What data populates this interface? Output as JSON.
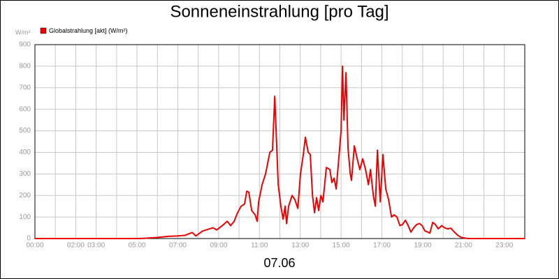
{
  "chart_data": {
    "type": "line",
    "title": "Sonneneinstrahlung [pro Tag]",
    "y_label": "W/m²",
    "x_label": "07.06",
    "series": [
      {
        "name": "Globalstrahlung [akt] (W/m²)",
        "color": "#ee0000",
        "x": [
          0,
          5.14,
          5.99,
          6.51,
          7.02,
          7.36,
          7.71,
          7.88,
          8.22,
          8.56,
          8.73,
          8.9,
          9.18,
          9.42,
          9.59,
          9.76,
          9.93,
          10.1,
          10.27,
          10.38,
          10.48,
          10.62,
          10.79,
          10.89,
          10.96,
          11.13,
          11.3,
          11.51,
          11.64,
          11.75,
          11.92,
          12.05,
          12.16,
          12.26,
          12.33,
          12.43,
          12.6,
          12.74,
          12.88,
          13.01,
          13.15,
          13.25,
          13.39,
          13.49,
          13.6,
          13.7,
          13.8,
          13.9,
          14.01,
          14.11,
          14.28,
          14.45,
          14.55,
          14.66,
          14.76,
          14.86,
          15.0,
          15.07,
          15.14,
          15.24,
          15.34,
          15.45,
          15.51,
          15.65,
          15.79,
          15.92,
          16.06,
          16.2,
          16.34,
          16.44,
          16.58,
          16.68,
          16.78,
          16.92,
          17.05,
          17.19,
          17.33,
          17.47,
          17.6,
          17.74,
          17.88,
          18.01,
          18.15,
          18.29,
          18.42,
          18.56,
          18.7,
          18.84,
          18.97,
          19.11,
          19.25,
          19.35,
          19.49,
          19.62,
          19.76,
          19.93,
          20.07,
          20.21,
          20.38,
          20.55,
          20.72,
          20.89,
          21.23,
          24
        ],
        "values": [
          0,
          0,
          5,
          10,
          12,
          15,
          28,
          12,
          35,
          45,
          50,
          40,
          60,
          80,
          60,
          80,
          120,
          150,
          160,
          220,
          215,
          130,
          110,
          80,
          170,
          250,
          300,
          400,
          410,
          660,
          250,
          150,
          90,
          150,
          70,
          150,
          200,
          180,
          140,
          300,
          390,
          470,
          400,
          390,
          200,
          120,
          190,
          130,
          200,
          170,
          330,
          320,
          260,
          280,
          230,
          340,
          500,
          800,
          550,
          770,
          420,
          300,
          270,
          430,
          370,
          320,
          370,
          320,
          250,
          320,
          200,
          150,
          410,
          170,
          390,
          230,
          180,
          100,
          110,
          100,
          60,
          65,
          85,
          60,
          30,
          50,
          65,
          70,
          60,
          35,
          30,
          25,
          75,
          65,
          45,
          60,
          50,
          45,
          48,
          30,
          15,
          5,
          0,
          0
        ]
      }
    ],
    "xlim": [
      0,
      24
    ],
    "xticks": [
      {
        "value": 0,
        "label": "00:00"
      },
      {
        "value": 1,
        "label": null
      },
      {
        "value": 2,
        "label": "02:00"
      },
      {
        "value": 3,
        "label": "03:00"
      },
      {
        "value": 4,
        "label": null
      },
      {
        "value": 5,
        "label": "05:00"
      },
      {
        "value": 6,
        "label": null
      },
      {
        "value": 7,
        "label": "07:00"
      },
      {
        "value": 8,
        "label": null
      },
      {
        "value": 9,
        "label": "09:00"
      },
      {
        "value": 10,
        "label": null
      },
      {
        "value": 11,
        "label": "11:00"
      },
      {
        "value": 12,
        "label": null
      },
      {
        "value": 13,
        "label": "13:00"
      },
      {
        "value": 14,
        "label": null
      },
      {
        "value": 15,
        "label": "15:00"
      },
      {
        "value": 16,
        "label": null
      },
      {
        "value": 17,
        "label": "17:00"
      },
      {
        "value": 18,
        "label": null
      },
      {
        "value": 19,
        "label": "19:00"
      },
      {
        "value": 20,
        "label": null
      },
      {
        "value": 21,
        "label": "21:00"
      },
      {
        "value": 22,
        "label": null
      },
      {
        "value": 23,
        "label": "23:00"
      }
    ],
    "ylim": [
      0,
      900
    ],
    "yticks": [
      0,
      100,
      200,
      300,
      400,
      500,
      600,
      700,
      800,
      900
    ],
    "grid": true
  }
}
